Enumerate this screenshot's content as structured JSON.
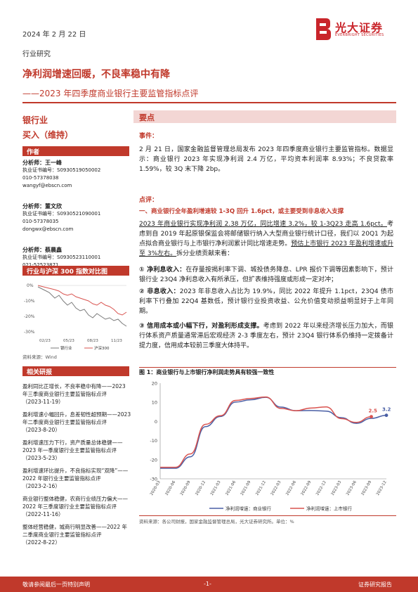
{
  "header": {
    "date": "2024 年 2 月 22 日",
    "brand_cn": "光大证券",
    "brand_en": "EVERBRIGHT SECURITIES",
    "category": "行业研究"
  },
  "title": {
    "headline": "净利润增速回暖，不良率稳中有降",
    "subtitle": "——2023 年四季度商业银行主要监管指标点评"
  },
  "sidebar": {
    "sector": "银行业",
    "rating": "买入（维持）",
    "authors_label": "作者",
    "analysts": [
      {
        "name_line": "分析师：王一峰",
        "cert": "执业证书编号：S0930519050002",
        "phone": "010-57378038",
        "email": "wangyf@ebscn.com"
      },
      {
        "name_line": "分析师：董文欣",
        "cert": "执业证书编号：S0930521090001",
        "phone": "010-57378035",
        "email": "dongwx@ebscn.com"
      },
      {
        "name_line": "分析师：蔡晨鑫",
        "cert": "执业证书编号：S0930523110001",
        "phone": "021-52523871",
        "email": "caitingfeng1@ebscn.com"
      }
    ],
    "index_chart_label": "行业与沪深 300 指数对比图",
    "index_chart_source": "资料来源：Wind",
    "index_chart_ticks": [
      "0%",
      "-10%",
      "-20%",
      "-30%"
    ],
    "index_chart_xticks": [
      "02/23",
      "05/23",
      "08/23",
      "11/23"
    ],
    "index_legend": [
      "银行业",
      "沪深300"
    ],
    "related_label": "相关研报",
    "related": [
      {
        "text": "盈利同比正增长，不良率稳中有降——2023 年三季度商业银行主要监管指标点评",
        "date": "（2023-11-19）"
      },
      {
        "text": "盈利增速小幅回升，息差韧性超预期——2023 年二季度商业银行主要监管指标点评",
        "date": "（2023-8-20）"
      },
      {
        "text": "盈利增速压力下行，资产质量总体稳健——2023 年一季度银行业主要监管指标点评",
        "date": "（2023-5-23）"
      },
      {
        "text": "盈利增速环比提升，不良指标实现“双降”——2022 年银行业主要监管指标点评",
        "date": "（2023-2-16）"
      },
      {
        "text": "商业银行整体稳健，农商行业绩压力偏大——2022 年三季度银行业主要监管指标点评",
        "date": "（2022-11-16）"
      },
      {
        "text": "整体经营稳健，城商行明显改善——2022 年二季度商业银行主要监管指标点评",
        "date": "（2022-8-22）"
      }
    ]
  },
  "main": {
    "section_label": "要点",
    "event_label": "事件：",
    "event_text": "2 月 21 日，国家金融监督管理总局发布 2023 年四季度商业银行主要监管指标。数据显示：商业银行 2023 年实现净利润 2.4 万亿，平均资本利润率 8.93%；不良贷款率 1.59%，较 3Q 末下降 2bp。",
    "comment_label": "点评：",
    "point1_title": "一、商业银行全年盈利增速较 1-3Q 回升 1.6pct，或主要受到非息收入支撑",
    "point1_p1_a": "2023 年商业银行实现净利润 2.38 万亿，同比增速 3.2%，较 1-3Q23 走高 1.6pct。",
    "point1_p1_b": "考虑到自 2019 年起原银保监会将邮储银行纳入大型商业银行统计口径，我们以 20Q1 为起点拟合商业银行与上市银行净利润累计同比增速走势。",
    "point1_p1_c": "预估上市银行 2023 年盈利增速或升至 3%左右。",
    "point1_p1_d": "拆分业绩贡献来看：",
    "item1_title": "① 净利息收入：",
    "item1_text": "在存量按揭利率下调、城投债务降息、LPR 报价下调等因素影响下，预计银行业 23Q4 净利息收入有所承压，但扩表维持强度或形成一定对冲；",
    "item2_title": "② 非息收入：",
    "item2_text": "2023 年非息收入占比为 19.9%，同比 2022 年提升 1.1pct，23Q4 债市利率下行叠加 22Q4 基数低，预计银行业投资收益、公允价值变动损益明显好于上年同期。",
    "item3_title": "③ 信用成本或小幅下行，对盈利形成支撑。",
    "item3_text": "考虑到 2022 年以来经济增长压力加大，而银行体系资产质量通常滞后宏观经济 2-3 季度左右，预计 23Q4 银行体系仍维持一定拨备计提力度，信用成本较前三季度大体持平。",
    "figure_title": "图 1：商业银行与上市银行净利润走势具有较强一致性",
    "figure_source": "资料来源：各公司财报，国家金融监督管理总局，光大证券研究所。单位：%"
  },
  "chart_data": {
    "type": "line",
    "x": [
      "2020-03",
      "2020-06",
      "2020-09",
      "2020-12",
      "2021-03",
      "2021-06",
      "2021-09",
      "2021-12",
      "2022-03",
      "2022-06",
      "2022-09",
      "2022-12",
      "2023-03",
      "2023-06",
      "2023-09",
      "2023-12"
    ],
    "series": [
      {
        "name": "净利润增速：商业银行",
        "color": "#4a5fa5",
        "values": [
          -24.5,
          -24.5,
          -18.5,
          -2.7,
          2.6,
          10.1,
          11.3,
          12.6,
          7.5,
          5.6,
          5.7,
          5.4,
          2.0,
          -1.0,
          1.6,
          3.2
        ]
      },
      {
        "name": "净利润增速：上市银行",
        "color": "#d9534f",
        "values": [
          -24.0,
          -24.0,
          -17.0,
          -1.5,
          3.0,
          11.0,
          12.0,
          12.8,
          6.8,
          5.6,
          7.0,
          7.6,
          1.5,
          -0.5,
          2.5,
          null
        ]
      }
    ],
    "labels": {
      "listed_last": "2.5",
      "commercial_last": "3.2"
    },
    "ylim": [
      -30,
      20
    ],
    "grid": false,
    "legend": "bottom"
  },
  "footer": {
    "left": "敬请参阅最后一页特别声明",
    "center": "-1-",
    "right": "证券研究报告"
  }
}
